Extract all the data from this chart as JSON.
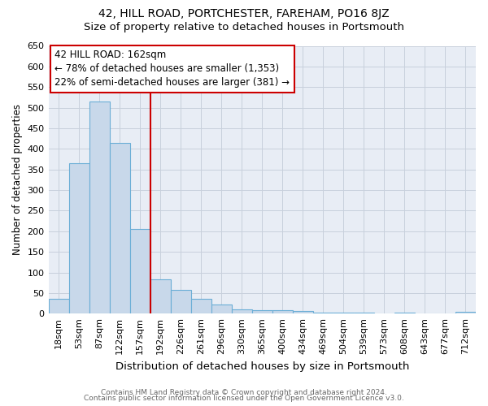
{
  "title1": "42, HILL ROAD, PORTCHESTER, FAREHAM, PO16 8JZ",
  "title2": "Size of property relative to detached houses in Portsmouth",
  "xlabel": "Distribution of detached houses by size in Portsmouth",
  "ylabel": "Number of detached properties",
  "footer1": "Contains HM Land Registry data © Crown copyright and database right 2024.",
  "footer2": "Contains public sector information licensed under the Open Government Licence v3.0.",
  "annotation_line1": "42 HILL ROAD: 162sqm",
  "annotation_line2": "← 78% of detached houses are smaller (1,353)",
  "annotation_line3": "22% of semi-detached houses are larger (381) →",
  "bar_labels": [
    "18sqm",
    "53sqm",
    "87sqm",
    "122sqm",
    "157sqm",
    "192sqm",
    "226sqm",
    "261sqm",
    "296sqm",
    "330sqm",
    "365sqm",
    "400sqm",
    "434sqm",
    "469sqm",
    "504sqm",
    "539sqm",
    "573sqm",
    "608sqm",
    "643sqm",
    "677sqm",
    "712sqm"
  ],
  "bar_values": [
    37,
    365,
    515,
    415,
    205,
    84,
    57,
    36,
    23,
    11,
    9,
    9,
    7,
    3,
    2,
    2,
    0,
    2,
    0,
    0,
    5
  ],
  "bar_color": "#c8d8ea",
  "bar_edge_color": "#6baed6",
  "red_line_x": 4.5,
  "ylim": [
    0,
    650
  ],
  "yticks": [
    0,
    50,
    100,
    150,
    200,
    250,
    300,
    350,
    400,
    450,
    500,
    550,
    600,
    650
  ],
  "annotation_box_facecolor": "#ffffff",
  "annotation_box_edgecolor": "#cc0000",
  "red_line_color": "#cc0000",
  "grid_color": "#c8d0dc",
  "ax_facecolor": "#e8edf5",
  "title1_fontsize": 10,
  "title2_fontsize": 9.5,
  "xlabel_fontsize": 9.5,
  "ylabel_fontsize": 8.5,
  "tick_fontsize": 8,
  "annotation_fontsize": 8.5,
  "footer_fontsize": 6.5
}
